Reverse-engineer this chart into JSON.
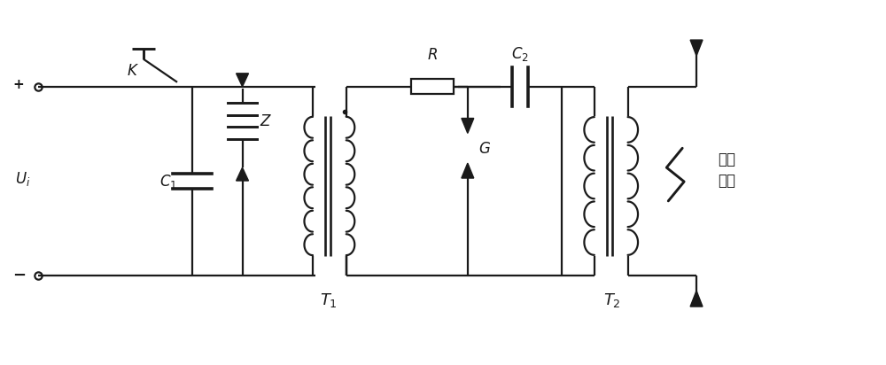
{
  "bg_color": "#ffffff",
  "line_color": "#1a1a1a",
  "lw": 1.6,
  "figsize": [
    10.0,
    4.12
  ],
  "dpi": 100,
  "xlim": [
    0,
    10
  ],
  "ylim": [
    0,
    4.12
  ]
}
